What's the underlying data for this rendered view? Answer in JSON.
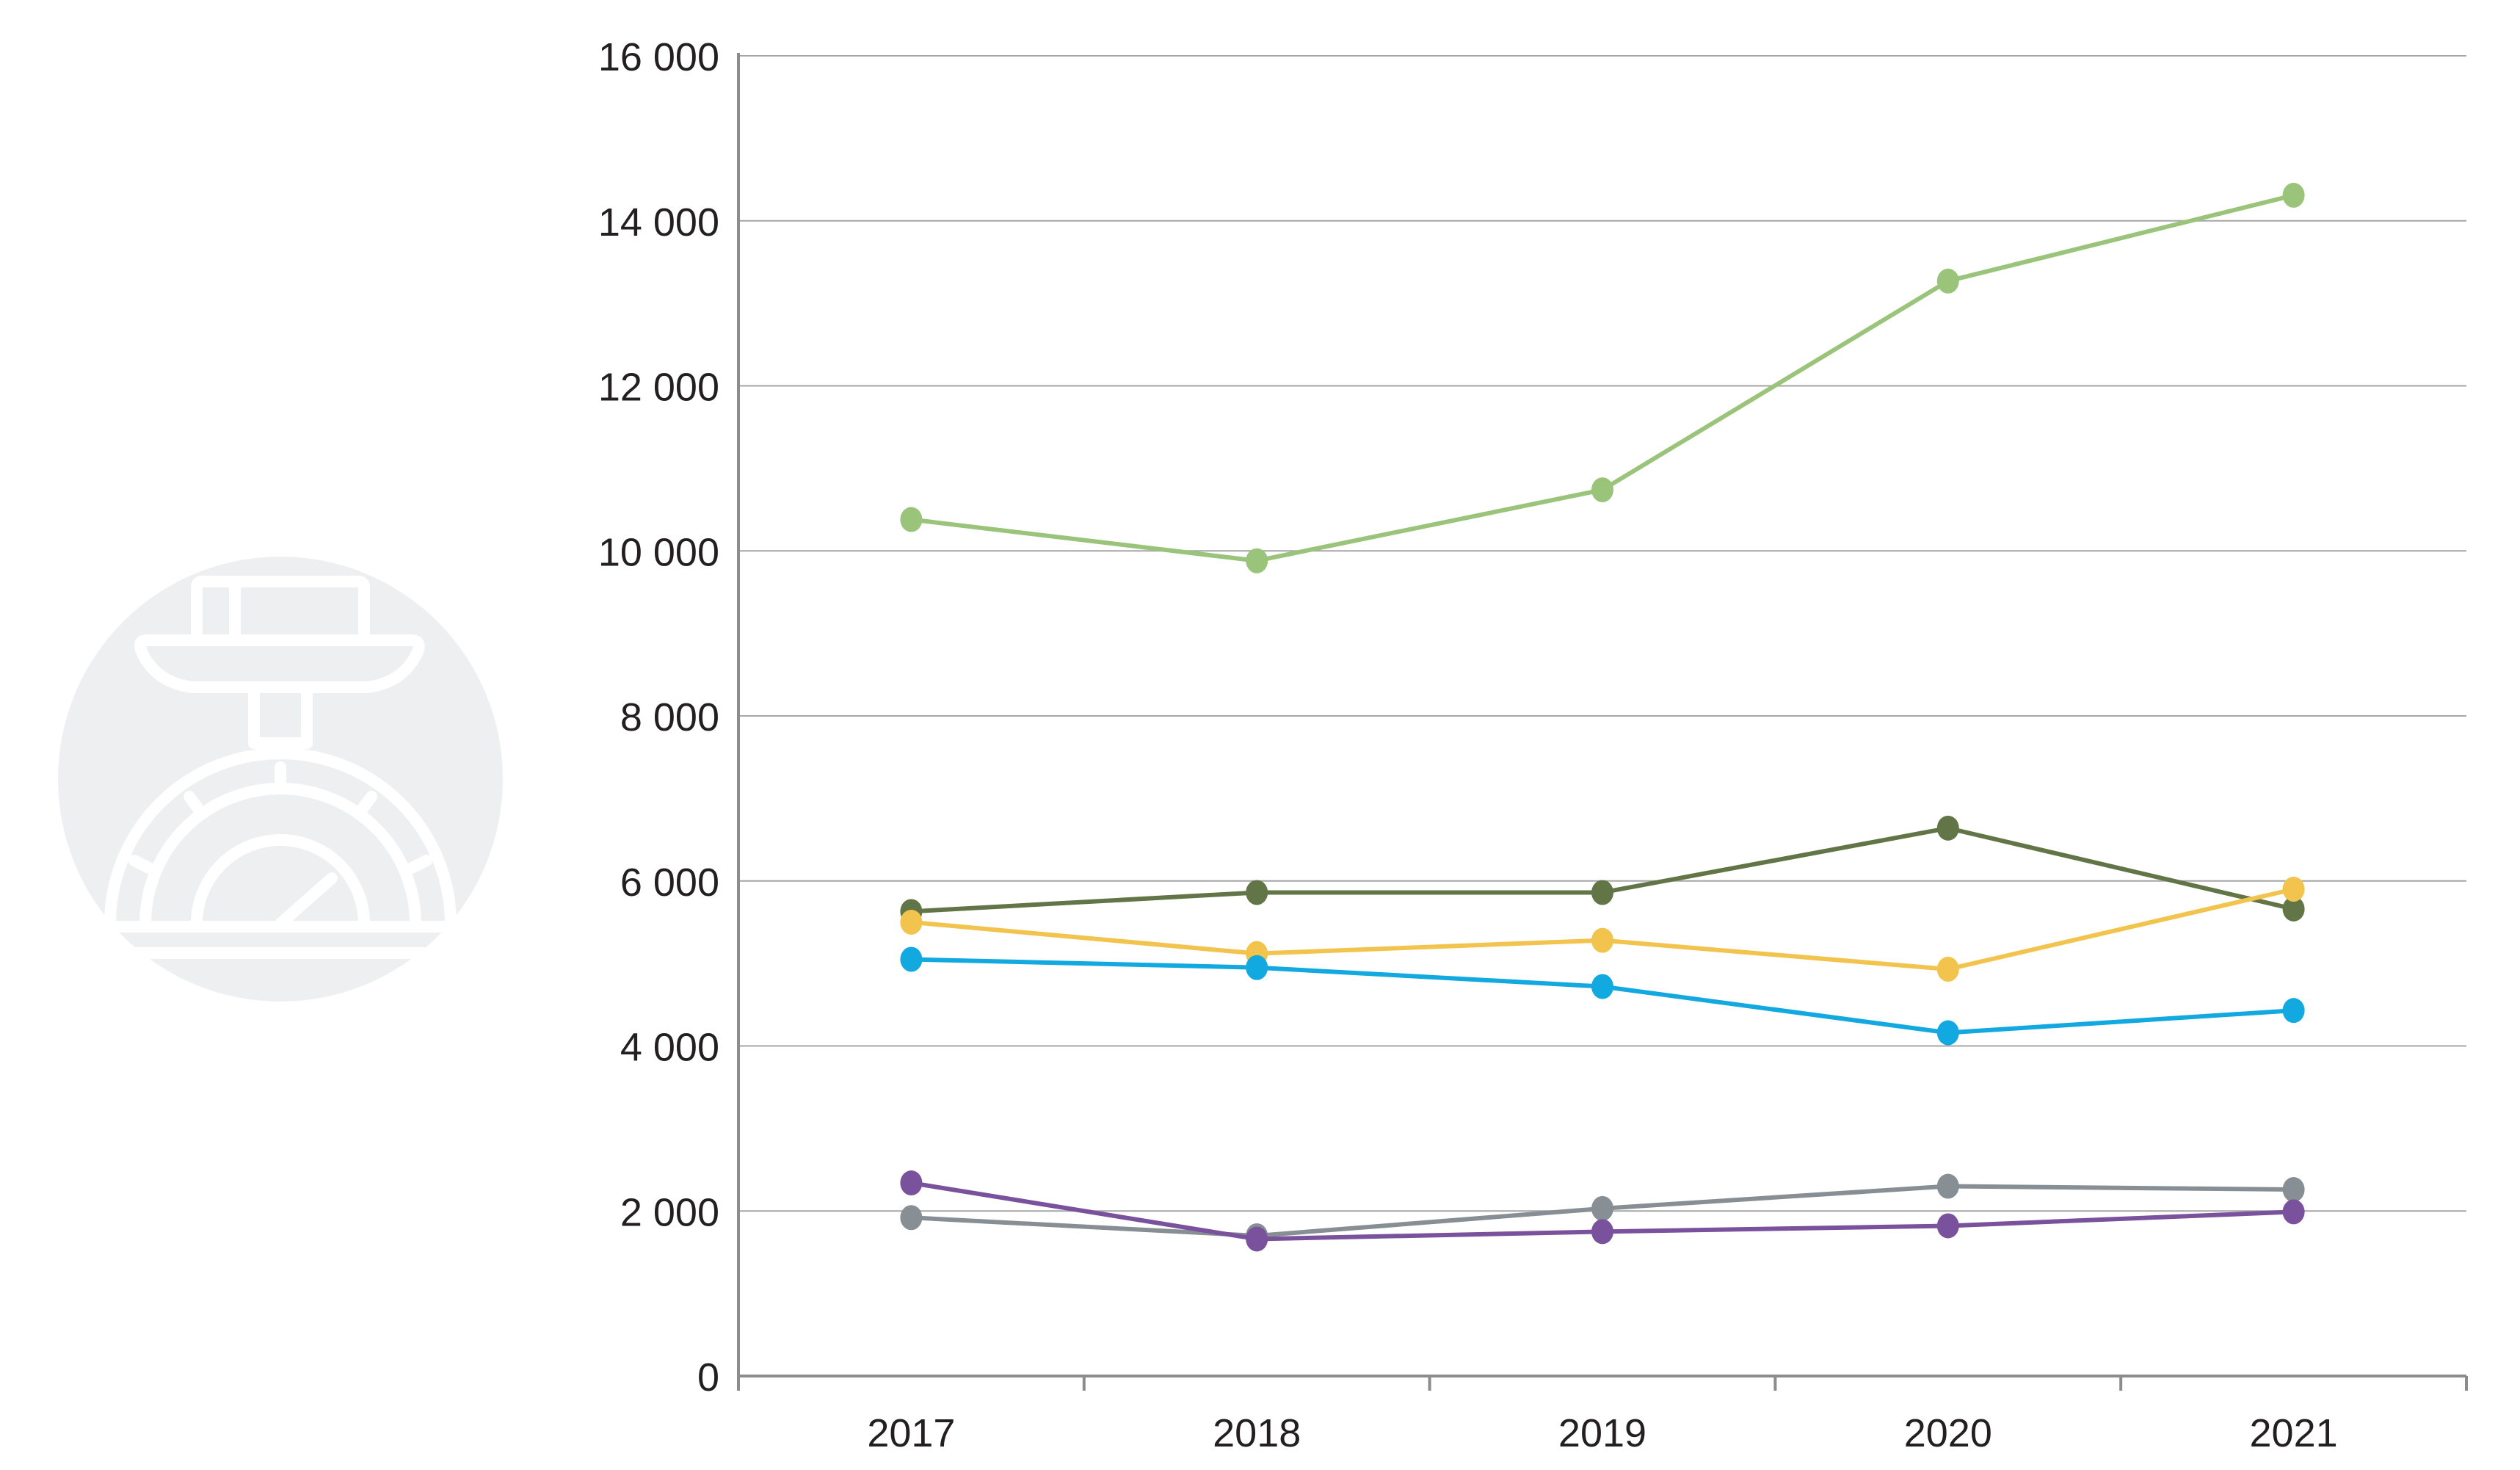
{
  "colors": {
    "background": "#ffffff",
    "grid": "#a6a6a6",
    "axis": "#8c8c8c",
    "text": "#231f20",
    "emblem_circle": "#eeeff1",
    "emblem_line": "#ffffff"
  },
  "emblem": {
    "icon": "scale-icon"
  },
  "chart_data": {
    "type": "line",
    "title": "",
    "xlabel": "",
    "ylabel": "",
    "categories": [
      "2017",
      "2018",
      "2019",
      "2020",
      "2021"
    ],
    "y_ticks": [
      0,
      2000,
      4000,
      6000,
      8000,
      10000,
      12000,
      14000,
      16000
    ],
    "y_tick_labels": [
      "0",
      "2 000",
      "4 000",
      "6 000",
      "8 000",
      "10 000",
      "12 000",
      "14 000",
      "16 000"
    ],
    "ylim": [
      0,
      16000
    ],
    "grid": true,
    "legend": "none",
    "series": [
      {
        "color": "#9bc47b",
        "values": [
          10380,
          9880,
          10740,
          13270,
          14310
        ]
      },
      {
        "color": "#627547",
        "values": [
          5630,
          5860,
          5860,
          6640,
          5660
        ]
      },
      {
        "color": "#f2c44e",
        "values": [
          5500,
          5120,
          5280,
          4930,
          5900
        ]
      },
      {
        "color": "#12a8e0",
        "values": [
          5050,
          4950,
          4720,
          4160,
          4430
        ]
      },
      {
        "color": "#878f95",
        "values": [
          1920,
          1700,
          2030,
          2300,
          2260
        ]
      },
      {
        "color": "#7a519c",
        "values": [
          2340,
          1660,
          1750,
          1820,
          1990
        ]
      }
    ]
  }
}
